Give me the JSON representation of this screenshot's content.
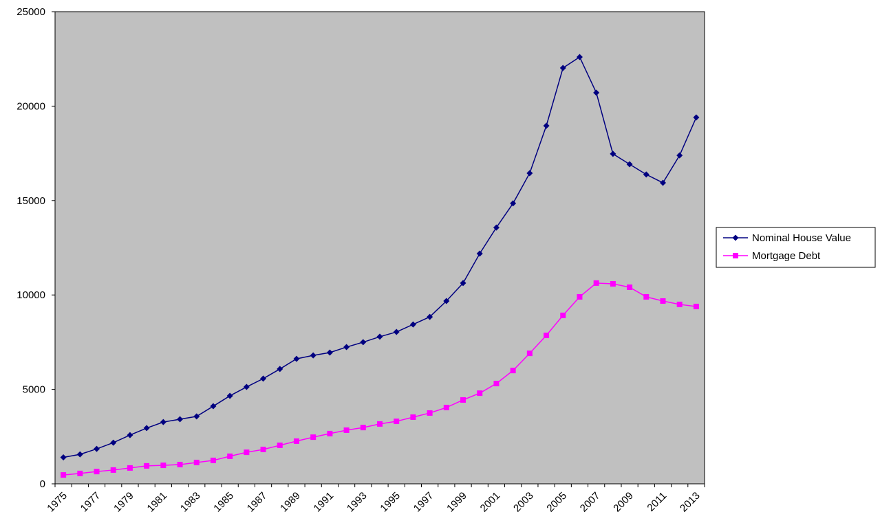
{
  "chart_data": {
    "type": "line",
    "categories": [
      "1975",
      null,
      "1977",
      null,
      "1979",
      null,
      "1981",
      null,
      "1983",
      null,
      "1985",
      null,
      "1987",
      null,
      "1989",
      null,
      "1991",
      null,
      "1993",
      null,
      "1995",
      null,
      "1997",
      null,
      "1999",
      null,
      "2001",
      null,
      "2003",
      null,
      "2005",
      null,
      "2007",
      null,
      "2009",
      null,
      "2011",
      null,
      "2013"
    ],
    "series": [
      {
        "name": "Nominal House Value",
        "color": "#000080",
        "marker": "diamond",
        "values": [
          1400,
          1560,
          1850,
          2180,
          2580,
          2950,
          3270,
          3420,
          3570,
          4110,
          4660,
          5130,
          5570,
          6080,
          6620,
          6800,
          6950,
          7240,
          7500,
          7790,
          8040,
          8440,
          8840,
          9680,
          10630,
          12190,
          13570,
          14850,
          16450,
          18960,
          22020,
          22600,
          20710,
          17470,
          16920,
          16380,
          15940,
          17390,
          19400
        ]
      },
      {
        "name": "Mortgage Debt",
        "color": "#ff00ff",
        "marker": "square",
        "values": [
          470,
          550,
          650,
          730,
          840,
          950,
          980,
          1020,
          1130,
          1240,
          1460,
          1670,
          1820,
          2040,
          2260,
          2470,
          2660,
          2840,
          2980,
          3170,
          3310,
          3530,
          3750,
          4040,
          4440,
          4800,
          5310,
          6000,
          6910,
          7860,
          8920,
          9900,
          10630,
          10590,
          10410,
          9900,
          9680,
          9500,
          9390
        ]
      }
    ],
    "ylim": [
      0,
      25000
    ],
    "yticks": [
      0,
      5000,
      10000,
      15000,
      20000,
      25000
    ],
    "plot_background": "#c0c0c0",
    "legend": "right"
  }
}
